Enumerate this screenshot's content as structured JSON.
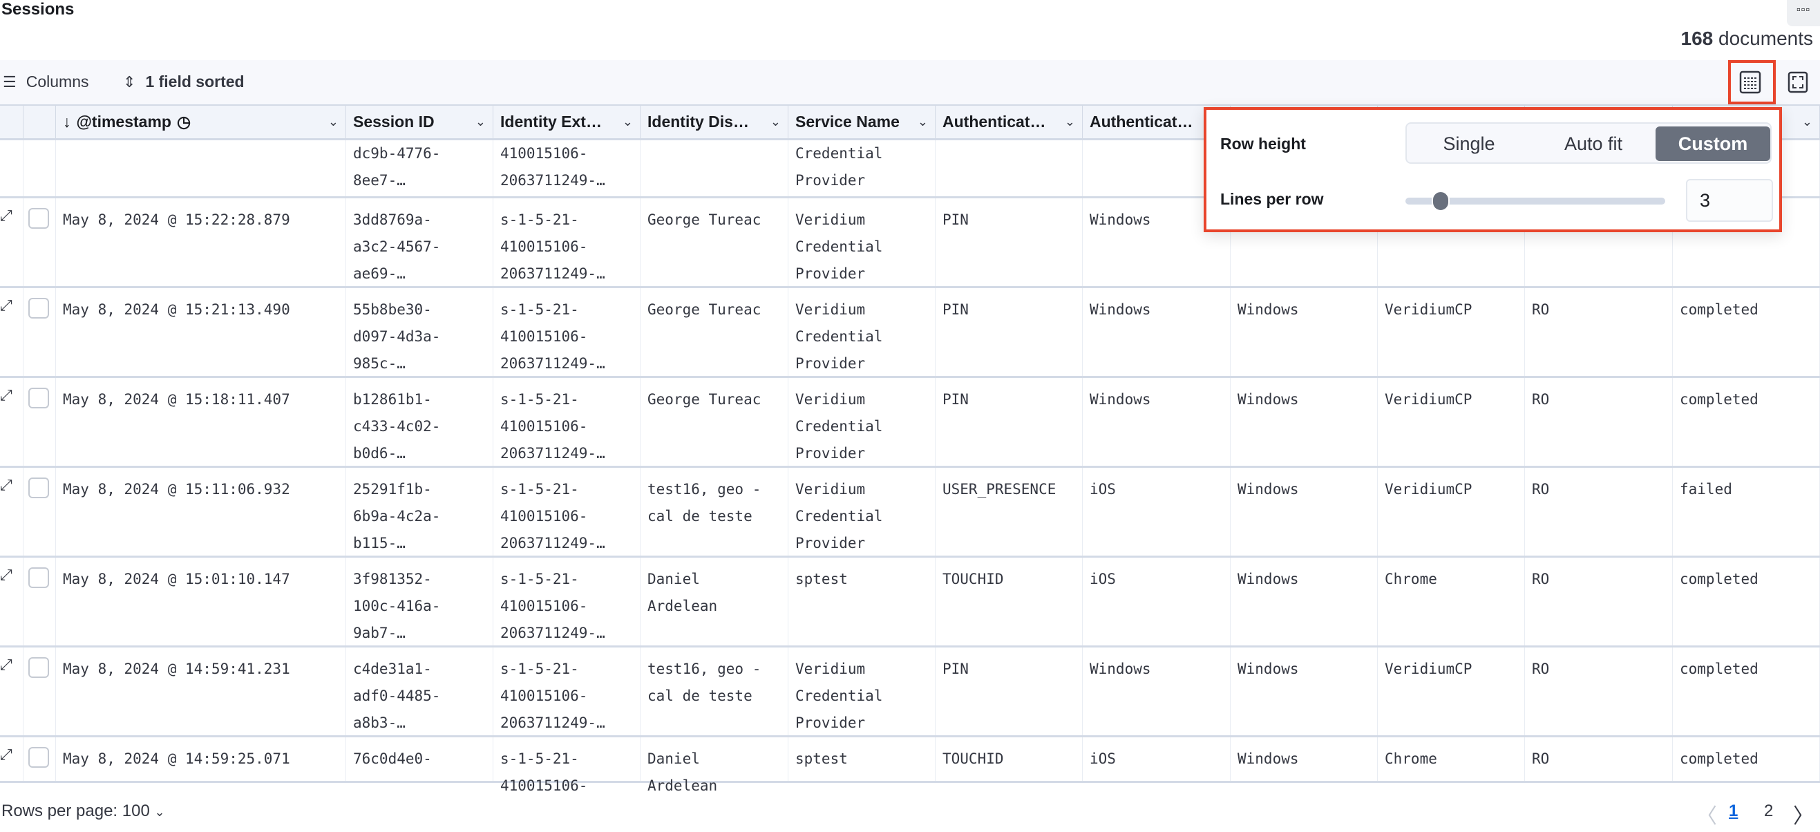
{
  "title": "Sessions",
  "doc_count": "168",
  "doc_label": "documents",
  "toolbar": {
    "columns": "Columns",
    "sorted": "1 field sorted"
  },
  "columns": [
    {
      "label": "",
      "w": 34
    },
    {
      "label": "",
      "w": 47
    },
    {
      "label": "@timestamp",
      "sort": "↓",
      "clock": true
    },
    {
      "label": "Session ID"
    },
    {
      "label": "Identity Ext…"
    },
    {
      "label": "Identity Dis…"
    },
    {
      "label": "Service Name"
    },
    {
      "label": "Authenticat…"
    },
    {
      "label": "Authenticat…"
    },
    {
      "label": ""
    },
    {
      "label": ""
    },
    {
      "label": ""
    },
    {
      "label": ""
    }
  ],
  "rows": [
    {
      "partial": true,
      "cells": [
        "",
        "",
        "",
        "dc9b-4776-\n8ee7-…",
        "410015106-\n2063711249-…",
        "",
        "Credential\nProvider",
        "",
        "",
        "",
        "",
        "",
        ""
      ]
    },
    {
      "cells": [
        "",
        "",
        "May 8, 2024 @ 15:22:28.879",
        "3dd8769a-\na3c2-4567-\nae69-…",
        "s-1-5-21-\n410015106-\n2063711249-…",
        "George Tureac",
        "Veridium\nCredential\nProvider",
        "PIN",
        "Windows",
        "",
        "",
        "",
        ""
      ]
    },
    {
      "cells": [
        "",
        "",
        "May 8, 2024 @ 15:21:13.490",
        "55b8be30-\nd097-4d3a-\n985c-…",
        "s-1-5-21-\n410015106-\n2063711249-…",
        "George Tureac",
        "Veridium\nCredential\nProvider",
        "PIN",
        "Windows",
        "Windows",
        "VeridiumCP",
        "RO",
        "completed"
      ]
    },
    {
      "cells": [
        "",
        "",
        "May 8, 2024 @ 15:18:11.407",
        "b12861b1-\nc433-4c02-\nb0d6-…",
        "s-1-5-21-\n410015106-\n2063711249-…",
        "George Tureac",
        "Veridium\nCredential\nProvider",
        "PIN",
        "Windows",
        "Windows",
        "VeridiumCP",
        "RO",
        "completed"
      ]
    },
    {
      "cells": [
        "",
        "",
        "May 8, 2024 @ 15:11:06.932",
        "25291f1b-\n6b9a-4c2a-\nb115-…",
        "s-1-5-21-\n410015106-\n2063711249-…",
        "test16, geo -\ncal de teste",
        "Veridium\nCredential\nProvider",
        "USER_PRESENCE",
        "iOS",
        "Windows",
        "VeridiumCP",
        "RO",
        "failed"
      ]
    },
    {
      "cells": [
        "",
        "",
        "May 8, 2024 @ 15:01:10.147",
        "3f981352-\n100c-416a-\n9ab7-…",
        "s-1-5-21-\n410015106-\n2063711249-…",
        "Daniel\nArdelean",
        "sptest",
        "TOUCHID",
        "iOS",
        "Windows",
        "Chrome",
        "RO",
        "completed"
      ]
    },
    {
      "cells": [
        "",
        "",
        "May 8, 2024 @ 14:59:41.231",
        "c4de31a1-\nadf0-4485-\na8b3-…",
        "s-1-5-21-\n410015106-\n2063711249-…",
        "test16, geo -\ncal de teste",
        "Veridium\nCredential\nProvider",
        "PIN",
        "Windows",
        "Windows",
        "VeridiumCP",
        "RO",
        "completed"
      ]
    },
    {
      "cut": true,
      "cells": [
        "",
        "",
        "May 8, 2024 @ 14:59:25.071",
        "76c0d4e0-",
        "s-1-5-21-\n410015106-",
        "Daniel\nArdelean",
        "sptest",
        "TOUCHID",
        "iOS",
        "Windows",
        "Chrome",
        "RO",
        "completed"
      ]
    }
  ],
  "popover": {
    "row_height_label": "Row height",
    "options": [
      "Single",
      "Auto fit",
      "Custom"
    ],
    "selected": "Custom",
    "lines_label": "Lines per row",
    "lines_value": "3",
    "slider_fraction": 0.1
  },
  "footer": {
    "rows_per_page": "Rows per page: 100",
    "pages": [
      "1",
      "2"
    ],
    "current_page": "1"
  },
  "colors": {
    "highlight": "#e8452c",
    "link": "#0b64dd",
    "selected_segment": "#69707d"
  }
}
